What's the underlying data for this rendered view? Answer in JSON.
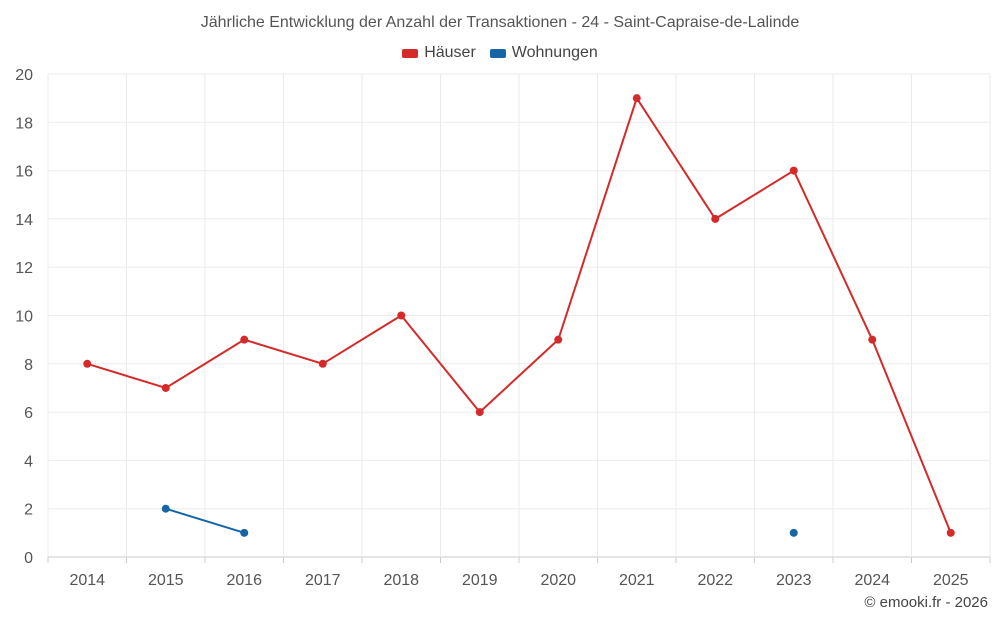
{
  "chart_data": {
    "type": "line",
    "title": "Jährliche Entwicklung der Anzahl der Transaktionen - 24 - Saint-Capraise-de-Lalinde",
    "categories": [
      "2014",
      "2015",
      "2016",
      "2017",
      "2018",
      "2019",
      "2020",
      "2021",
      "2022",
      "2023",
      "2024",
      "2025"
    ],
    "series": [
      {
        "name": "Häuser",
        "color": "#d42a2a",
        "values": [
          8,
          7,
          9,
          8,
          10,
          6,
          9,
          19,
          14,
          16,
          9,
          1
        ]
      },
      {
        "name": "Wohnungen",
        "color": "#1565a7",
        "values": [
          null,
          2,
          1,
          null,
          null,
          null,
          null,
          null,
          null,
          1,
          null,
          null
        ]
      }
    ],
    "ylim": [
      0,
      20
    ],
    "yticks": [
      "0",
      "2",
      "4",
      "6",
      "8",
      "10",
      "12",
      "14",
      "16",
      "18",
      "20"
    ],
    "grid": true,
    "legend_position": "top-center"
  },
  "footer": {
    "credit": "© emooki.fr - 2026"
  }
}
